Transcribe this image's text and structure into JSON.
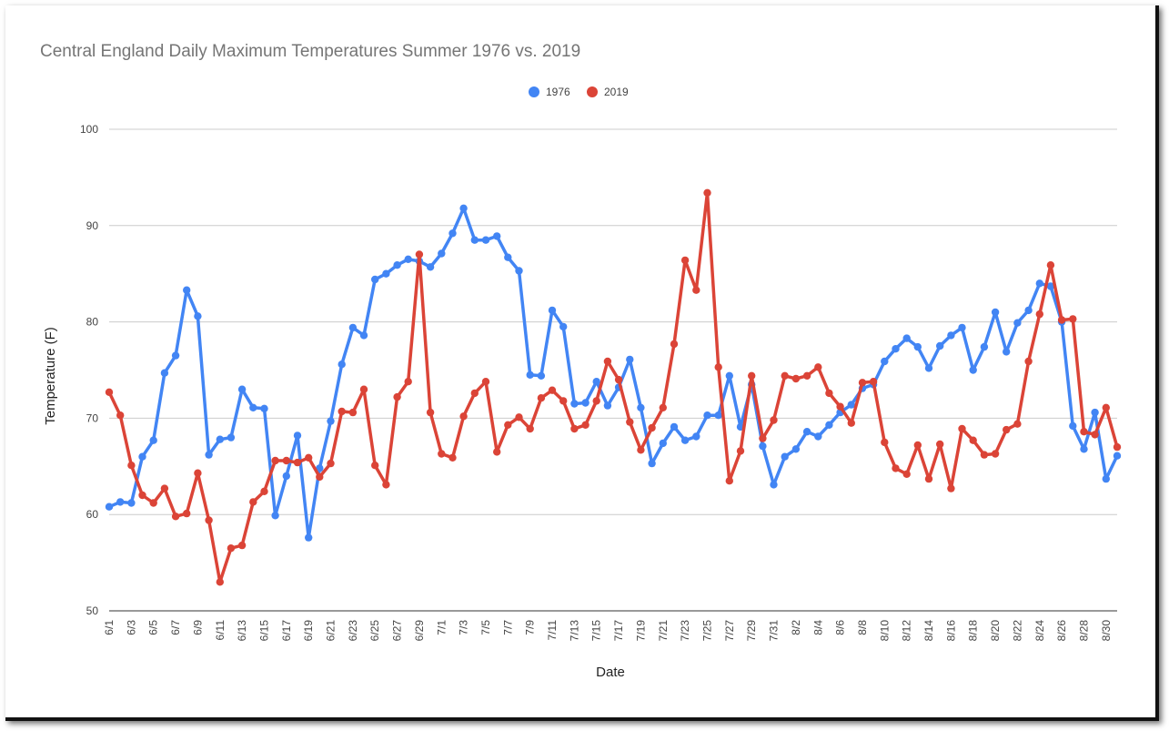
{
  "chart_data": {
    "type": "line",
    "title": "Central England Daily Maximum Temperatures Summer 1976 vs. 2019",
    "xlabel": "Date",
    "ylabel": "Temperature (F)",
    "ylim": [
      50,
      100
    ],
    "yticks": [
      50,
      60,
      70,
      80,
      90,
      100
    ],
    "grid": true,
    "legend_position": "top",
    "x_tick_labels": [
      "6/1",
      "6/3",
      "6/5",
      "6/7",
      "6/9",
      "6/11",
      "6/13",
      "6/15",
      "6/17",
      "6/19",
      "6/21",
      "6/23",
      "6/25",
      "6/27",
      "6/29",
      "7/1",
      "7/3",
      "7/5",
      "7/7",
      "7/9",
      "7/11",
      "7/13",
      "7/15",
      "7/17",
      "7/19",
      "7/21",
      "7/23",
      "7/25",
      "7/27",
      "7/29",
      "7/31",
      "8/2",
      "8/4",
      "8/6",
      "8/8",
      "8/10",
      "8/12",
      "8/14",
      "8/16",
      "8/18",
      "8/20",
      "8/22",
      "8/24",
      "8/26",
      "8/28",
      "8/30"
    ],
    "x_start": "6/1",
    "series": [
      {
        "name": "1976",
        "color": "#4285F4",
        "values": [
          60.8,
          61.3,
          61.2,
          66.0,
          67.7,
          74.7,
          76.5,
          83.3,
          80.6,
          66.2,
          67.8,
          68.0,
          73.0,
          71.1,
          71.0,
          59.9,
          64.0,
          68.2,
          57.6,
          64.8,
          69.7,
          75.6,
          79.4,
          78.6,
          84.4,
          85.0,
          85.9,
          86.5,
          86.3,
          85.7,
          87.1,
          89.2,
          91.8,
          88.5,
          88.5,
          88.9,
          86.7,
          85.3,
          74.5,
          74.4,
          81.2,
          79.5,
          71.5,
          71.6,
          73.8,
          71.3,
          73.2,
          76.1,
          71.1,
          65.3,
          67.4,
          69.1,
          67.7,
          68.1,
          70.3,
          70.3,
          74.4,
          69.1,
          73.5,
          67.1,
          63.1,
          66.0,
          66.8,
          68.6,
          68.1,
          69.3,
          70.6,
          71.4,
          73.1,
          73.5,
          75.9,
          77.2,
          78.3,
          77.4,
          75.2,
          77.5,
          78.6,
          79.4,
          75.0,
          77.4,
          81.0,
          76.9,
          79.9,
          81.2,
          84.0,
          83.7,
          80.0,
          69.2,
          66.8,
          70.6,
          63.7,
          66.1
        ]
      },
      {
        "name": "2019",
        "color": "#DB4437",
        "values": [
          72.7,
          70.3,
          65.1,
          62.0,
          61.2,
          62.7,
          59.8,
          60.1,
          64.3,
          59.4,
          53.0,
          56.5,
          56.8,
          61.3,
          62.4,
          65.6,
          65.6,
          65.4,
          65.9,
          63.9,
          65.3,
          70.7,
          70.6,
          73.0,
          65.1,
          63.1,
          72.2,
          73.8,
          87.0,
          70.6,
          66.3,
          65.9,
          70.2,
          72.6,
          73.8,
          66.5,
          69.3,
          70.1,
          68.9,
          72.1,
          72.9,
          71.8,
          68.9,
          69.3,
          71.8,
          75.9,
          74.0,
          69.6,
          66.7,
          69.0,
          71.1,
          77.7,
          86.4,
          83.3,
          93.4,
          75.3,
          63.5,
          66.6,
          74.4,
          67.9,
          69.8,
          74.4,
          74.1,
          74.4,
          75.3,
          72.6,
          71.2,
          69.5,
          73.7,
          73.8,
          67.5,
          64.8,
          64.2,
          67.2,
          63.7,
          67.3,
          62.7,
          68.9,
          67.7,
          66.2,
          66.3,
          68.8,
          69.4,
          75.9,
          80.8,
          85.9,
          80.2,
          80.3,
          68.6,
          68.3,
          71.1,
          67.0
        ]
      }
    ]
  }
}
